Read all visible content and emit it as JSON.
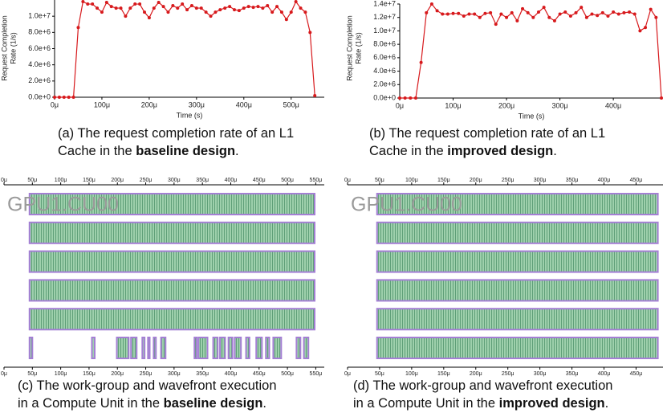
{
  "chart_data": [
    {
      "type": "line",
      "color": "#d7191c",
      "ylabel": [
        "Request Completion",
        "Rate (1/s)"
      ],
      "xlabel": "Time (s)",
      "xlim": [
        0,
        570
      ],
      "ylim": [
        0,
        12000000
      ],
      "xticks": [
        {
          "value": 0,
          "label": "0μ"
        },
        {
          "value": 100,
          "label": "100μ"
        },
        {
          "value": 200,
          "label": "200μ"
        },
        {
          "value": 300,
          "label": "300μ"
        },
        {
          "value": 400,
          "label": "400μ"
        },
        {
          "value": 500,
          "label": "500μ"
        }
      ],
      "yticks": [
        {
          "value": 0,
          "label": "0.0e+0"
        },
        {
          "value": 2000000,
          "label": "2.0e+6"
        },
        {
          "value": 4000000,
          "label": "4.0e+6"
        },
        {
          "value": 6000000,
          "label": "6.0e+6"
        },
        {
          "value": 8000000,
          "label": "8.0e+6"
        },
        {
          "value": 10000000,
          "label": "1.0e+7"
        }
      ],
      "x": [
        0,
        10,
        20,
        30,
        40,
        50,
        60,
        70,
        80,
        90,
        100,
        110,
        120,
        130,
        140,
        150,
        160,
        170,
        180,
        190,
        200,
        210,
        220,
        230,
        240,
        250,
        260,
        270,
        280,
        290,
        300,
        310,
        320,
        330,
        340,
        350,
        360,
        370,
        380,
        390,
        400,
        410,
        420,
        430,
        440,
        450,
        460,
        470,
        480,
        490,
        500,
        510,
        520,
        530,
        540,
        550
      ],
      "values": [
        0,
        0,
        0,
        0,
        0,
        8600000,
        11800000,
        11500000,
        11500000,
        11000000,
        10500000,
        11700000,
        11200000,
        11000000,
        11000000,
        10000000,
        11000000,
        11500000,
        11500000,
        10500000,
        9800000,
        11000000,
        11700000,
        11200000,
        10500000,
        11300000,
        11000000,
        11500000,
        10800000,
        11300000,
        11000000,
        11000000,
        10500000,
        10000000,
        10500000,
        10800000,
        11000000,
        11200000,
        10800000,
        10700000,
        11000000,
        11200000,
        11100000,
        11200000,
        11000000,
        11300000,
        10500000,
        11200000,
        10500000,
        9600000,
        10500000,
        11800000,
        11000000,
        10500000,
        8000000,
        200000
      ],
      "caption": {
        "lines": [
          "(a) The request completion rate of an L1",
          "Cache in the "
        ],
        "bold": "baseline design",
        "end": "."
      }
    },
    {
      "type": "line",
      "color": "#d7191c",
      "ylabel": [
        "Request Completion",
        "Rate (1/s)"
      ],
      "xlabel": "Time (s)",
      "xlim": [
        0,
        493
      ],
      "ylim": [
        0,
        14000000
      ],
      "xticks": [
        {
          "value": 0,
          "label": "0μ"
        },
        {
          "value": 100,
          "label": "100μ"
        },
        {
          "value": 200,
          "label": "200μ"
        },
        {
          "value": 300,
          "label": "300μ"
        },
        {
          "value": 400,
          "label": "400μ"
        }
      ],
      "yticks": [
        {
          "value": 0,
          "label": "0.0e+0"
        },
        {
          "value": 2000000,
          "label": "2.0e+6"
        },
        {
          "value": 4000000,
          "label": "4.0e+6"
        },
        {
          "value": 6000000,
          "label": "6.0e+6"
        },
        {
          "value": 8000000,
          "label": "8.0e+6"
        },
        {
          "value": 10000000,
          "label": "1.0e+7"
        },
        {
          "value": 12000000,
          "label": "1.2e+7"
        },
        {
          "value": 14000000,
          "label": "1.4e+7"
        }
      ],
      "x": [
        0,
        10,
        20,
        30,
        40,
        50,
        60,
        70,
        80,
        90,
        100,
        110,
        120,
        130,
        140,
        150,
        160,
        170,
        180,
        190,
        200,
        210,
        220,
        230,
        240,
        250,
        260,
        270,
        280,
        290,
        300,
        310,
        320,
        330,
        340,
        350,
        360,
        370,
        380,
        390,
        400,
        410,
        420,
        430,
        440,
        450,
        460,
        470,
        480,
        490
      ],
      "values": [
        0,
        0,
        0,
        0,
        5300000,
        12700000,
        14000000,
        13000000,
        12500000,
        12500000,
        12600000,
        12600000,
        12200000,
        12500000,
        12500000,
        12000000,
        12600000,
        12700000,
        11000000,
        12500000,
        12000000,
        12700000,
        11500000,
        13300000,
        12700000,
        12000000,
        12800000,
        13500000,
        12000000,
        11500000,
        12500000,
        12800000,
        12200000,
        12700000,
        13500000,
        12000000,
        12500000,
        12300000,
        12700000,
        12200000,
        12800000,
        12500000,
        12700000,
        12800000,
        12500000,
        10000000,
        10500000,
        13200000,
        12000000,
        0
      ],
      "caption": {
        "lines": [
          "(b) The request completion rate of an L1",
          "Cache in the "
        ],
        "bold": "improved design",
        "end": "."
      }
    },
    {
      "type": "timeline",
      "label": "GPU1.CU00",
      "xlim": [
        0,
        565
      ],
      "xticks": [
        {
          "value": 0,
          "label": "0μ"
        },
        {
          "value": 50,
          "label": "50μ"
        },
        {
          "value": 100,
          "label": "100μ"
        },
        {
          "value": 150,
          "label": "150μ"
        },
        {
          "value": 200,
          "label": "200μ"
        },
        {
          "value": 250,
          "label": "250μ"
        },
        {
          "value": 300,
          "label": "300μ"
        },
        {
          "value": 350,
          "label": "350μ"
        },
        {
          "value": 400,
          "label": "400μ"
        },
        {
          "value": 450,
          "label": "450μ"
        },
        {
          "value": 500,
          "label": "500μ"
        },
        {
          "value": 550,
          "label": "550μ"
        }
      ],
      "rows": [
        {
          "segments": [
            [
              45,
              548
            ]
          ]
        },
        {
          "segments": [
            [
              45,
              548
            ]
          ]
        },
        {
          "segments": [
            [
              45,
              548
            ]
          ]
        },
        {
          "segments": [
            [
              45,
              548
            ]
          ]
        },
        {
          "segments": [
            [
              45,
              548
            ]
          ]
        },
        {
          "segments": [
            [
              45,
              50
            ],
            [
              155,
              160
            ],
            [
              199,
              220
            ],
            [
              224,
              234
            ],
            [
              244,
              248
            ],
            [
              254,
              257
            ],
            [
              264,
              268
            ],
            [
              277,
              285
            ],
            [
              336,
              340
            ],
            [
              343,
              359
            ],
            [
              369,
              377
            ],
            [
              381,
              390
            ],
            [
              396,
              403
            ],
            [
              407,
              418
            ],
            [
              427,
              433
            ],
            [
              445,
              455
            ],
            [
              462,
              468
            ],
            [
              475,
              489
            ],
            [
              516,
              523
            ],
            [
              529,
              537
            ]
          ]
        }
      ],
      "caption": {
        "lines": [
          "(c) The work-group and wavefront execution",
          "in a Compute Unit in the "
        ],
        "bold": "baseline design",
        "end": "."
      }
    },
    {
      "type": "timeline",
      "label": "GPU1.CU00",
      "xlim": [
        0,
        492
      ],
      "xticks": [
        {
          "value": 0,
          "label": "0μ"
        },
        {
          "value": 50,
          "label": "50μ"
        },
        {
          "value": 100,
          "label": "100μ"
        },
        {
          "value": 150,
          "label": "150μ"
        },
        {
          "value": 200,
          "label": "200μ"
        },
        {
          "value": 250,
          "label": "250μ"
        },
        {
          "value": 300,
          "label": "300μ"
        },
        {
          "value": 350,
          "label": "350μ"
        },
        {
          "value": 400,
          "label": "400μ"
        },
        {
          "value": 450,
          "label": "450μ"
        }
      ],
      "rows": [
        {
          "segments": [
            [
              46,
              484
            ]
          ]
        },
        {
          "segments": [
            [
              46,
              484
            ]
          ]
        },
        {
          "segments": [
            [
              46,
              484
            ]
          ]
        },
        {
          "segments": [
            [
              46,
              484
            ]
          ]
        },
        {
          "segments": [
            [
              46,
              484
            ]
          ]
        },
        {
          "segments": [
            [
              46,
              484
            ]
          ]
        }
      ],
      "caption": {
        "lines": [
          "(d) The work-group and wavefront execution",
          "in a Compute Unit in the "
        ],
        "bold": "improved design",
        "end": "."
      }
    }
  ]
}
